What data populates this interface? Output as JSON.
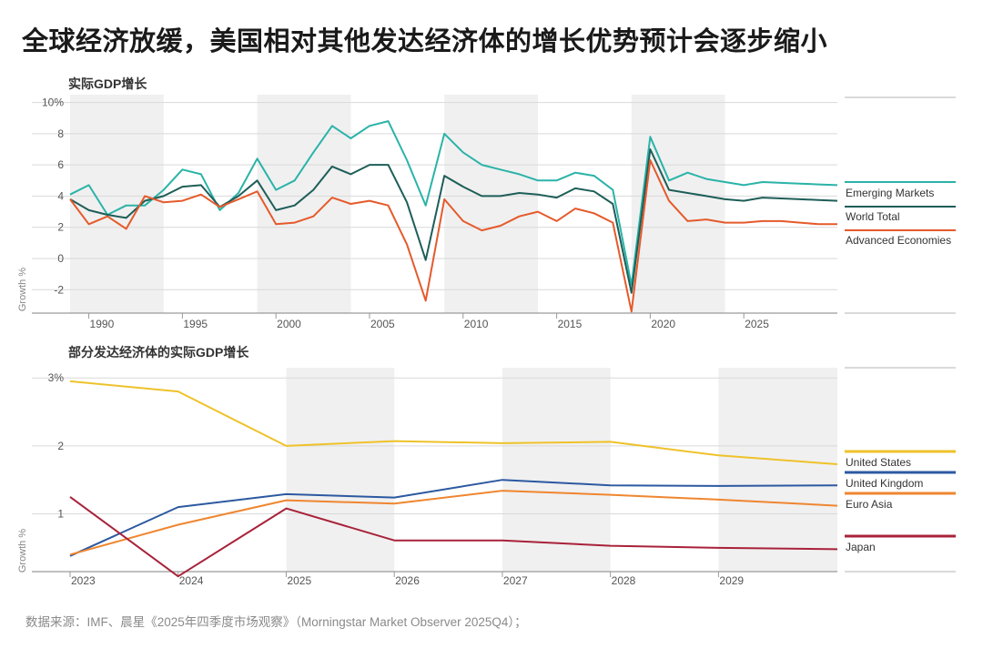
{
  "title": "全球经济放缓，美国相对其他发达经济体的增长优势预计会逐步缩小",
  "source": "数据来源：IMF、晨星《2025年四季度市场观察》（Morningstar Market Observer 2025Q4）；",
  "chart_data": [
    {
      "type": "line",
      "title": "实际GDP增长",
      "ylabel": "Growth %",
      "xlim": [
        1989,
        2030
      ],
      "ylim": [
        -3.5,
        10.5
      ],
      "yticks": [
        {
          "value": 10,
          "label": "10%"
        },
        {
          "value": 8,
          "label": "8"
        },
        {
          "value": 6,
          "label": "6"
        },
        {
          "value": 4,
          "label": "4"
        },
        {
          "value": 2,
          "label": "2"
        },
        {
          "value": 0,
          "label": "0"
        },
        {
          "value": -2,
          "label": "-2"
        }
      ],
      "xticks": [
        1990,
        1995,
        2000,
        2005,
        2010,
        2015,
        2020,
        2025
      ],
      "shaded_bands": [
        [
          1989,
          1994
        ],
        [
          1999,
          2004
        ],
        [
          2009,
          2014
        ],
        [
          2019,
          2024
        ]
      ],
      "x": [
        1989,
        1990,
        1991,
        1992,
        1993,
        1994,
        1995,
        1996,
        1997,
        1998,
        1999,
        2000,
        2001,
        2002,
        2003,
        2004,
        2005,
        2006,
        2007,
        2008,
        2009,
        2010,
        2011,
        2012,
        2013,
        2014,
        2015,
        2016,
        2017,
        2018,
        2019,
        2020,
        2021,
        2022,
        2023,
        2024,
        2025,
        2026,
        2027,
        2028,
        2029,
        2030
      ],
      "series": [
        {
          "name": "Emerging Markets",
          "color": "#2bb3a8",
          "values": [
            4.1,
            4.7,
            2.8,
            3.4,
            3.4,
            4.4,
            5.7,
            5.4,
            3.1,
            4.2,
            6.4,
            4.4,
            5.0,
            6.8,
            8.5,
            7.7,
            8.5,
            8.8,
            6.3,
            3.4,
            8.0,
            6.8,
            6.0,
            5.7,
            5.4,
            5.0,
            5.0,
            5.5,
            5.3,
            4.4,
            -1.7,
            7.8,
            5.0,
            5.5,
            5.1,
            4.9,
            4.7,
            4.9,
            4.85,
            4.8,
            4.75,
            4.7
          ]
        },
        {
          "name": "World Total",
          "color": "#1e5e58",
          "values": [
            3.8,
            3.1,
            2.8,
            2.6,
            3.7,
            4.0,
            4.6,
            4.7,
            3.3,
            4.0,
            5.0,
            3.1,
            3.4,
            4.4,
            5.9,
            5.4,
            6.0,
            6.0,
            3.6,
            -0.1,
            5.3,
            4.6,
            4.0,
            4.0,
            4.2,
            4.1,
            3.9,
            4.5,
            4.3,
            3.5,
            -2.2,
            7.0,
            4.4,
            4.2,
            4.0,
            3.8,
            3.7,
            3.9,
            3.85,
            3.8,
            3.75,
            3.7
          ]
        },
        {
          "name": "Advanced Economies",
          "color": "#e55a2b",
          "values": [
            3.8,
            2.2,
            2.7,
            1.9,
            4.0,
            3.6,
            3.7,
            4.1,
            3.3,
            3.8,
            4.3,
            2.2,
            2.3,
            2.7,
            3.9,
            3.5,
            3.7,
            3.4,
            0.9,
            -2.7,
            3.8,
            2.4,
            1.8,
            2.1,
            2.7,
            3.0,
            2.4,
            3.2,
            2.9,
            2.3,
            -3.4,
            6.3,
            3.7,
            2.4,
            2.5,
            2.3,
            2.3,
            2.4,
            2.4,
            2.3,
            2.2,
            2.2
          ]
        }
      ]
    },
    {
      "type": "line",
      "title": "部分发达经济体的实际GDP增长",
      "ylabel": "Growth %",
      "xlim": [
        2023,
        2030.1
      ],
      "ylim": [
        0.15,
        3.15
      ],
      "yticks": [
        {
          "value": 3,
          "label": "3%"
        },
        {
          "value": 2,
          "label": "2"
        },
        {
          "value": 1,
          "label": "1"
        }
      ],
      "xticks": [
        2023,
        2024,
        2025,
        2026,
        2027,
        2028,
        2029
      ],
      "shaded_bands": [
        [
          2025,
          2026
        ],
        [
          2027,
          2028
        ],
        [
          2029,
          2030.1
        ]
      ],
      "x": [
        2023,
        2024,
        2025,
        2026,
        2027,
        2028,
        2029,
        2030.1
      ],
      "series": [
        {
          "name": "United States",
          "color": "#eec22a",
          "values": [
            2.95,
            2.8,
            2.0,
            2.07,
            2.04,
            2.06,
            1.86,
            1.73
          ]
        },
        {
          "name": "United Kingdom",
          "color": "#2c59a0",
          "values": [
            0.38,
            1.1,
            1.29,
            1.24,
            1.5,
            1.42,
            1.41,
            1.42
          ]
        },
        {
          "name": "Euro Asia",
          "color": "#ef8630",
          "values": [
            0.4,
            0.84,
            1.2,
            1.15,
            1.34,
            1.28,
            1.21,
            1.12
          ]
        },
        {
          "name": "Japan",
          "color": "#a8223a",
          "values": [
            1.25,
            0.08,
            1.08,
            0.61,
            0.61,
            0.53,
            0.5,
            0.48
          ]
        }
      ]
    }
  ]
}
